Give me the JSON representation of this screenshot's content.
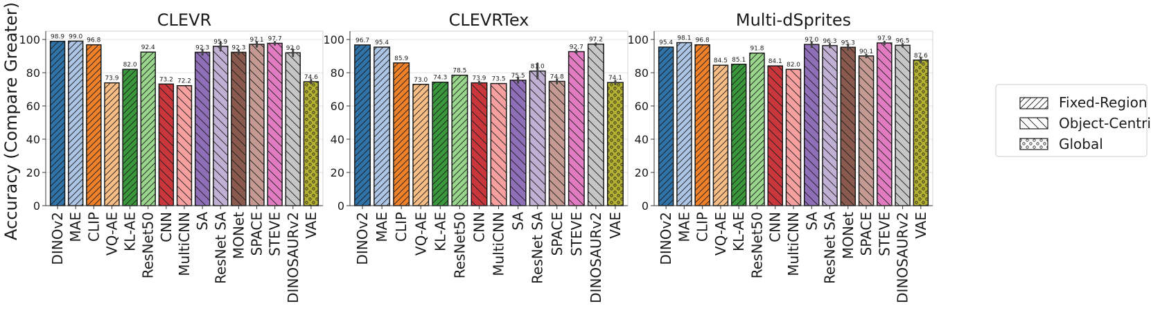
{
  "ylabel": "Accuracy (Compare Greater)",
  "legend": {
    "placement": "right",
    "items": [
      {
        "label": "Fixed-Region",
        "pattern": "fwd-hatch"
      },
      {
        "label": "Object-Centric",
        "pattern": "back-hatch"
      },
      {
        "label": "Global",
        "pattern": "dots"
      }
    ]
  },
  "chart_data": [
    {
      "type": "bar",
      "title": "CLEVR",
      "ylim": [
        0,
        105
      ],
      "yticks": [
        0,
        20,
        40,
        60,
        80,
        100
      ],
      "grid": true,
      "categories": [
        "DINOv2",
        "MAE",
        "CLIP",
        "VQ-AE",
        "KL-AE",
        "ResNet50",
        "CNN",
        "MultiCNN",
        "SA",
        "ResNet SA",
        "MONet",
        "SPACE",
        "STEVE",
        "DINOSAURv2",
        "VAE"
      ],
      "values": [
        98.9,
        99.0,
        96.8,
        73.9,
        82.0,
        92.4,
        73.2,
        72.2,
        92.3,
        95.9,
        92.3,
        97.1,
        97.7,
        92.0,
        74.6
      ],
      "value_labels": [
        "98.9",
        "99.0",
        "96.8",
        "73.9",
        "82.0",
        "92.4",
        "73.2",
        "72.2",
        "92.3",
        "95.9",
        "92.3",
        "97.1",
        "97.7",
        "92.0",
        "74.6"
      ],
      "errors": [
        0,
        0,
        0,
        0,
        0,
        0,
        0,
        0,
        1.5,
        2.5,
        1.2,
        1.5,
        0.8,
        2,
        1
      ],
      "groups": [
        "fixed",
        "fixed",
        "fixed",
        "fixed",
        "fixed",
        "fixed",
        "object",
        "object",
        "object",
        "object",
        "object",
        "object",
        "object",
        "object",
        "global"
      ]
    },
    {
      "type": "bar",
      "title": "CLEVRTex",
      "ylim": [
        0,
        105
      ],
      "yticks": [
        0,
        20,
        40,
        60,
        80,
        100
      ],
      "grid": true,
      "categories": [
        "DINOv2",
        "MAE",
        "CLIP",
        "VQ-AE",
        "KL-AE",
        "ResNet50",
        "CNN",
        "MultiCNN",
        "SA",
        "ResNet SA",
        "SPACE",
        "STEVE",
        "DINOSAURv2",
        "VAE"
      ],
      "values": [
        96.7,
        95.4,
        85.9,
        73.0,
        74.3,
        78.5,
        73.9,
        73.5,
        75.5,
        81.0,
        74.8,
        92.7,
        97.2,
        74.1
      ],
      "value_labels": [
        "96.7",
        "95.4",
        "85.9",
        "73.0",
        "74.3",
        "78.5",
        "73.9",
        "73.5",
        "75.5",
        "81.0",
        "74.8",
        "92.7",
        "97.2",
        "74.1"
      ],
      "errors": [
        0,
        0,
        0,
        0,
        0,
        0,
        0.8,
        0,
        1.5,
        4.5,
        1.2,
        0.8,
        0.4,
        1
      ],
      "groups": [
        "fixed",
        "fixed",
        "fixed",
        "fixed",
        "fixed",
        "fixed",
        "object",
        "object",
        "object",
        "object",
        "object",
        "object",
        "object",
        "global"
      ]
    },
    {
      "type": "bar",
      "title": "Multi-dSprites",
      "ylim": [
        0,
        105
      ],
      "yticks": [
        0,
        20,
        40,
        60,
        80,
        100
      ],
      "grid": true,
      "categories": [
        "DINOv2",
        "MAE",
        "CLIP",
        "VQ-AE",
        "KL-AE",
        "ResNet50",
        "CNN",
        "MultiCNN",
        "SA",
        "ResNet SA",
        "MONet",
        "SPACE",
        "STEVE",
        "DINOSAURv2",
        "VAE"
      ],
      "values": [
        95.4,
        98.1,
        96.8,
        84.5,
        85.1,
        91.8,
        84.1,
        82.0,
        97.0,
        96.3,
        95.3,
        90.1,
        97.9,
        96.5,
        87.6
      ],
      "value_labels": [
        "95.4",
        "98.1",
        "96.8",
        "84.5",
        "85.1",
        "91.8",
        "84.1",
        "82.0",
        "97.0",
        "96.3",
        "95.3",
        "90.1",
        "97.9",
        "96.5",
        "87.6"
      ],
      "errors": [
        0,
        0,
        0,
        0,
        0,
        0,
        0,
        0,
        1.5,
        1,
        1.5,
        0.8,
        0.8,
        0.8,
        1.5
      ],
      "groups": [
        "fixed",
        "fixed",
        "fixed",
        "fixed",
        "fixed",
        "fixed",
        "object",
        "object",
        "object",
        "object",
        "object",
        "object",
        "object",
        "object",
        "global"
      ]
    }
  ],
  "colors": {
    "DINOv2": "#2f73a8",
    "MAE": "#adc5e4",
    "CLIP": "#f08128",
    "VQ-AE": "#f7bd86",
    "KL-AE": "#3a973c",
    "ResNet50": "#99d68b",
    "CNN": "#c9373c",
    "MultiCNN": "#f6a0a0",
    "SA": "#8f6fb8",
    "ResNet SA": "#c0b0d4",
    "MONet": "#8a5a4e",
    "SPACE": "#c49a93",
    "STEVE": "#e27cc2",
    "DINOSAURv2": "#c6c6c6",
    "VAE": "#b3b132"
  }
}
